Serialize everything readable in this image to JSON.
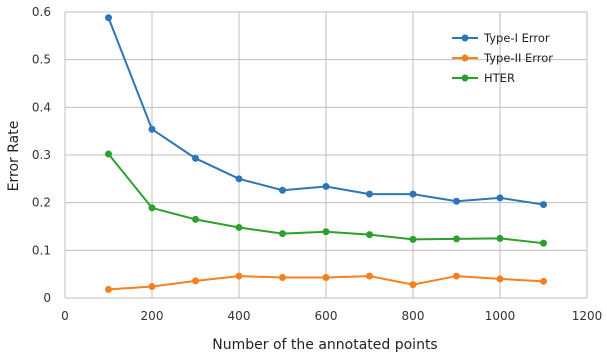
{
  "chart_data": {
    "type": "line",
    "title": "",
    "xlabel": "Number of the annotated points",
    "ylabel": "Error Rate",
    "xlim": [
      0,
      1200
    ],
    "ylim": [
      0,
      0.6
    ],
    "xticks": [
      0,
      200,
      400,
      600,
      800,
      1000,
      1200
    ],
    "yticks": [
      0,
      0.1,
      0.2,
      0.3,
      0.4,
      0.5,
      0.6
    ],
    "xtick_labels": [
      "0",
      "200",
      "400",
      "600",
      "800",
      "1000",
      "1200"
    ],
    "ytick_labels": [
      "0",
      "0.1",
      "0.2",
      "0.3",
      "0.4",
      "0.5",
      "0.6"
    ],
    "grid": true,
    "legend_position": "top-right",
    "x": [
      100,
      200,
      300,
      400,
      500,
      600,
      700,
      800,
      900,
      1000,
      1100
    ],
    "series": [
      {
        "name": "Type-I Error",
        "color": "#2e75b6",
        "values": [
          0.588,
          0.354,
          0.293,
          0.25,
          0.226,
          0.234,
          0.218,
          0.218,
          0.203,
          0.21,
          0.196
        ]
      },
      {
        "name": "Type-II Error",
        "color": "#f4811f",
        "values": [
          0.018,
          0.024,
          0.036,
          0.046,
          0.043,
          0.043,
          0.046,
          0.028,
          0.046,
          0.04,
          0.035
        ]
      },
      {
        "name": "HTER",
        "color": "#2ca02c",
        "values": [
          0.302,
          0.189,
          0.165,
          0.148,
          0.135,
          0.139,
          0.133,
          0.123,
          0.124,
          0.125,
          0.115
        ]
      }
    ]
  }
}
